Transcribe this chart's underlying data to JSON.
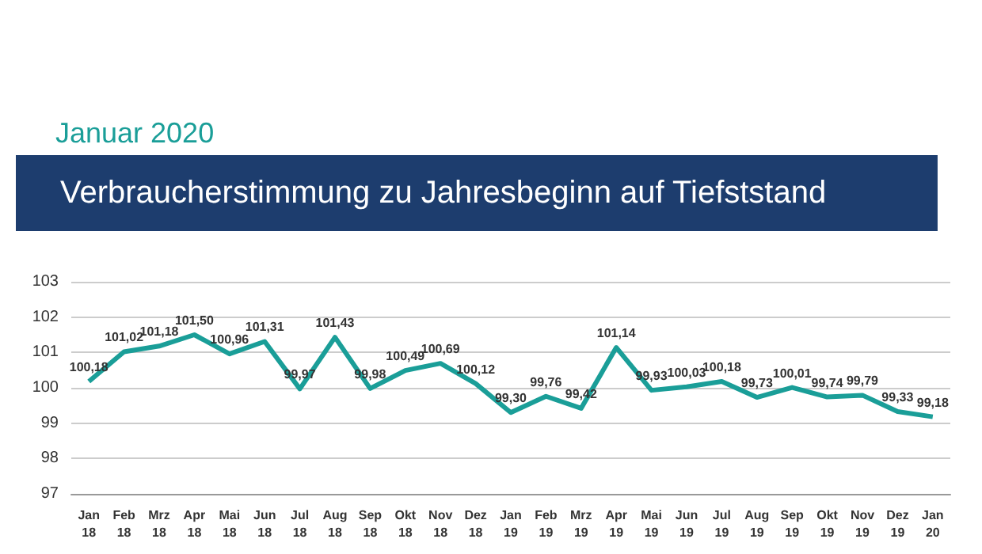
{
  "chart_data": {
    "type": "line",
    "title": "Verbraucherstimmung zu Jahresbeginn auf Tiefststand",
    "subtitle": "Januar 2020",
    "categories": [
      "Jan\n18",
      "Feb\n18",
      "Mrz\n18",
      "Apr\n18",
      "Mai\n18",
      "Jun\n18",
      "Jul\n18",
      "Aug\n18",
      "Sep\n18",
      "Okt\n18",
      "Nov\n18",
      "Dez\n18",
      "Jan\n19",
      "Feb\n19",
      "Mrz\n19",
      "Apr\n19",
      "Mai\n19",
      "Jun\n19",
      "Jul\n19",
      "Aug\n19",
      "Sep\n19",
      "Okt\n19",
      "Nov\n19",
      "Dez\n19",
      "Jan\n20"
    ],
    "values": [
      100.18,
      101.02,
      101.18,
      101.5,
      100.96,
      101.31,
      99.97,
      101.43,
      99.98,
      100.49,
      100.69,
      100.12,
      99.3,
      99.76,
      99.42,
      101.14,
      99.93,
      100.03,
      100.18,
      99.73,
      100.01,
      99.74,
      99.79,
      99.33,
      99.18
    ],
    "value_labels": [
      "100,18",
      "101,02",
      "101,18",
      "101,50",
      "100,96",
      "101,31",
      "99,97",
      "101,43",
      "99,98",
      "100,49",
      "100,69",
      "100,12",
      "99,30",
      "99,76",
      "99,42",
      "101,14",
      "99,93",
      "100,03",
      "100,18",
      "99,73",
      "100,01",
      "99,74",
      "99,79",
      "99,33",
      "99,18"
    ],
    "color": "#1a9e98",
    "ylim": [
      97,
      103
    ],
    "yticks": [
      97,
      98,
      99,
      100,
      101,
      102,
      103
    ],
    "grid": "y"
  }
}
